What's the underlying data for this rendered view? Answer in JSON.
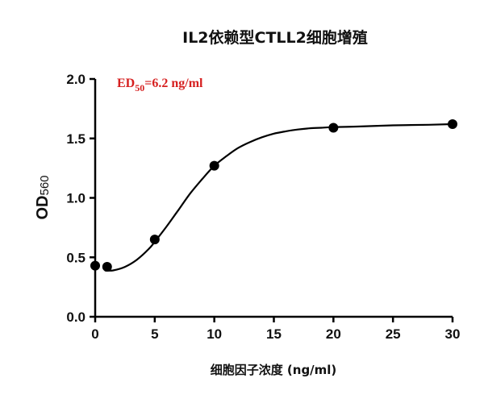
{
  "chart_data": {
    "type": "line",
    "title": "IL2依赖型CTLL2细胞增殖",
    "xlabel": "细胞因子浓度 (ng/ml)",
    "ylabel_main": "OD",
    "ylabel_sub": "560",
    "annotation": {
      "prefix": "ED",
      "sub": "50",
      "suffix": "=6.2 ng/ml"
    },
    "xlim": [
      0,
      30
    ],
    "ylim": [
      0,
      2.0
    ],
    "xticks": [
      0,
      5,
      10,
      15,
      20,
      25,
      30
    ],
    "xtick_labels": [
      "0",
      "5",
      "10",
      "15",
      "20",
      "25",
      "30"
    ],
    "yticks": [
      0,
      0.5,
      1.0,
      1.5,
      2.0
    ],
    "ytick_labels": [
      "0.0",
      "0.5",
      "1.0",
      "1.5",
      "2.0"
    ],
    "points": {
      "x": [
        0,
        1,
        5,
        10,
        20,
        30
      ],
      "y": [
        0.43,
        0.42,
        0.65,
        1.27,
        1.59,
        1.62
      ]
    },
    "fit_curve": {
      "x": [
        0.8,
        1.5,
        2.5,
        3.5,
        4.5,
        5,
        6,
        7,
        8,
        9,
        10,
        11,
        12,
        13,
        14,
        15,
        16,
        17,
        18,
        19,
        20,
        22,
        25,
        28,
        30
      ],
      "y": [
        0.39,
        0.39,
        0.42,
        0.48,
        0.57,
        0.63,
        0.76,
        0.9,
        1.04,
        1.16,
        1.27,
        1.35,
        1.42,
        1.47,
        1.51,
        1.54,
        1.56,
        1.575,
        1.585,
        1.59,
        1.595,
        1.6,
        1.61,
        1.615,
        1.62
      ]
    },
    "colors": {
      "line": "#000000",
      "points": "#000000",
      "annotation": "#d62020"
    },
    "legend": "none",
    "grid": false
  }
}
